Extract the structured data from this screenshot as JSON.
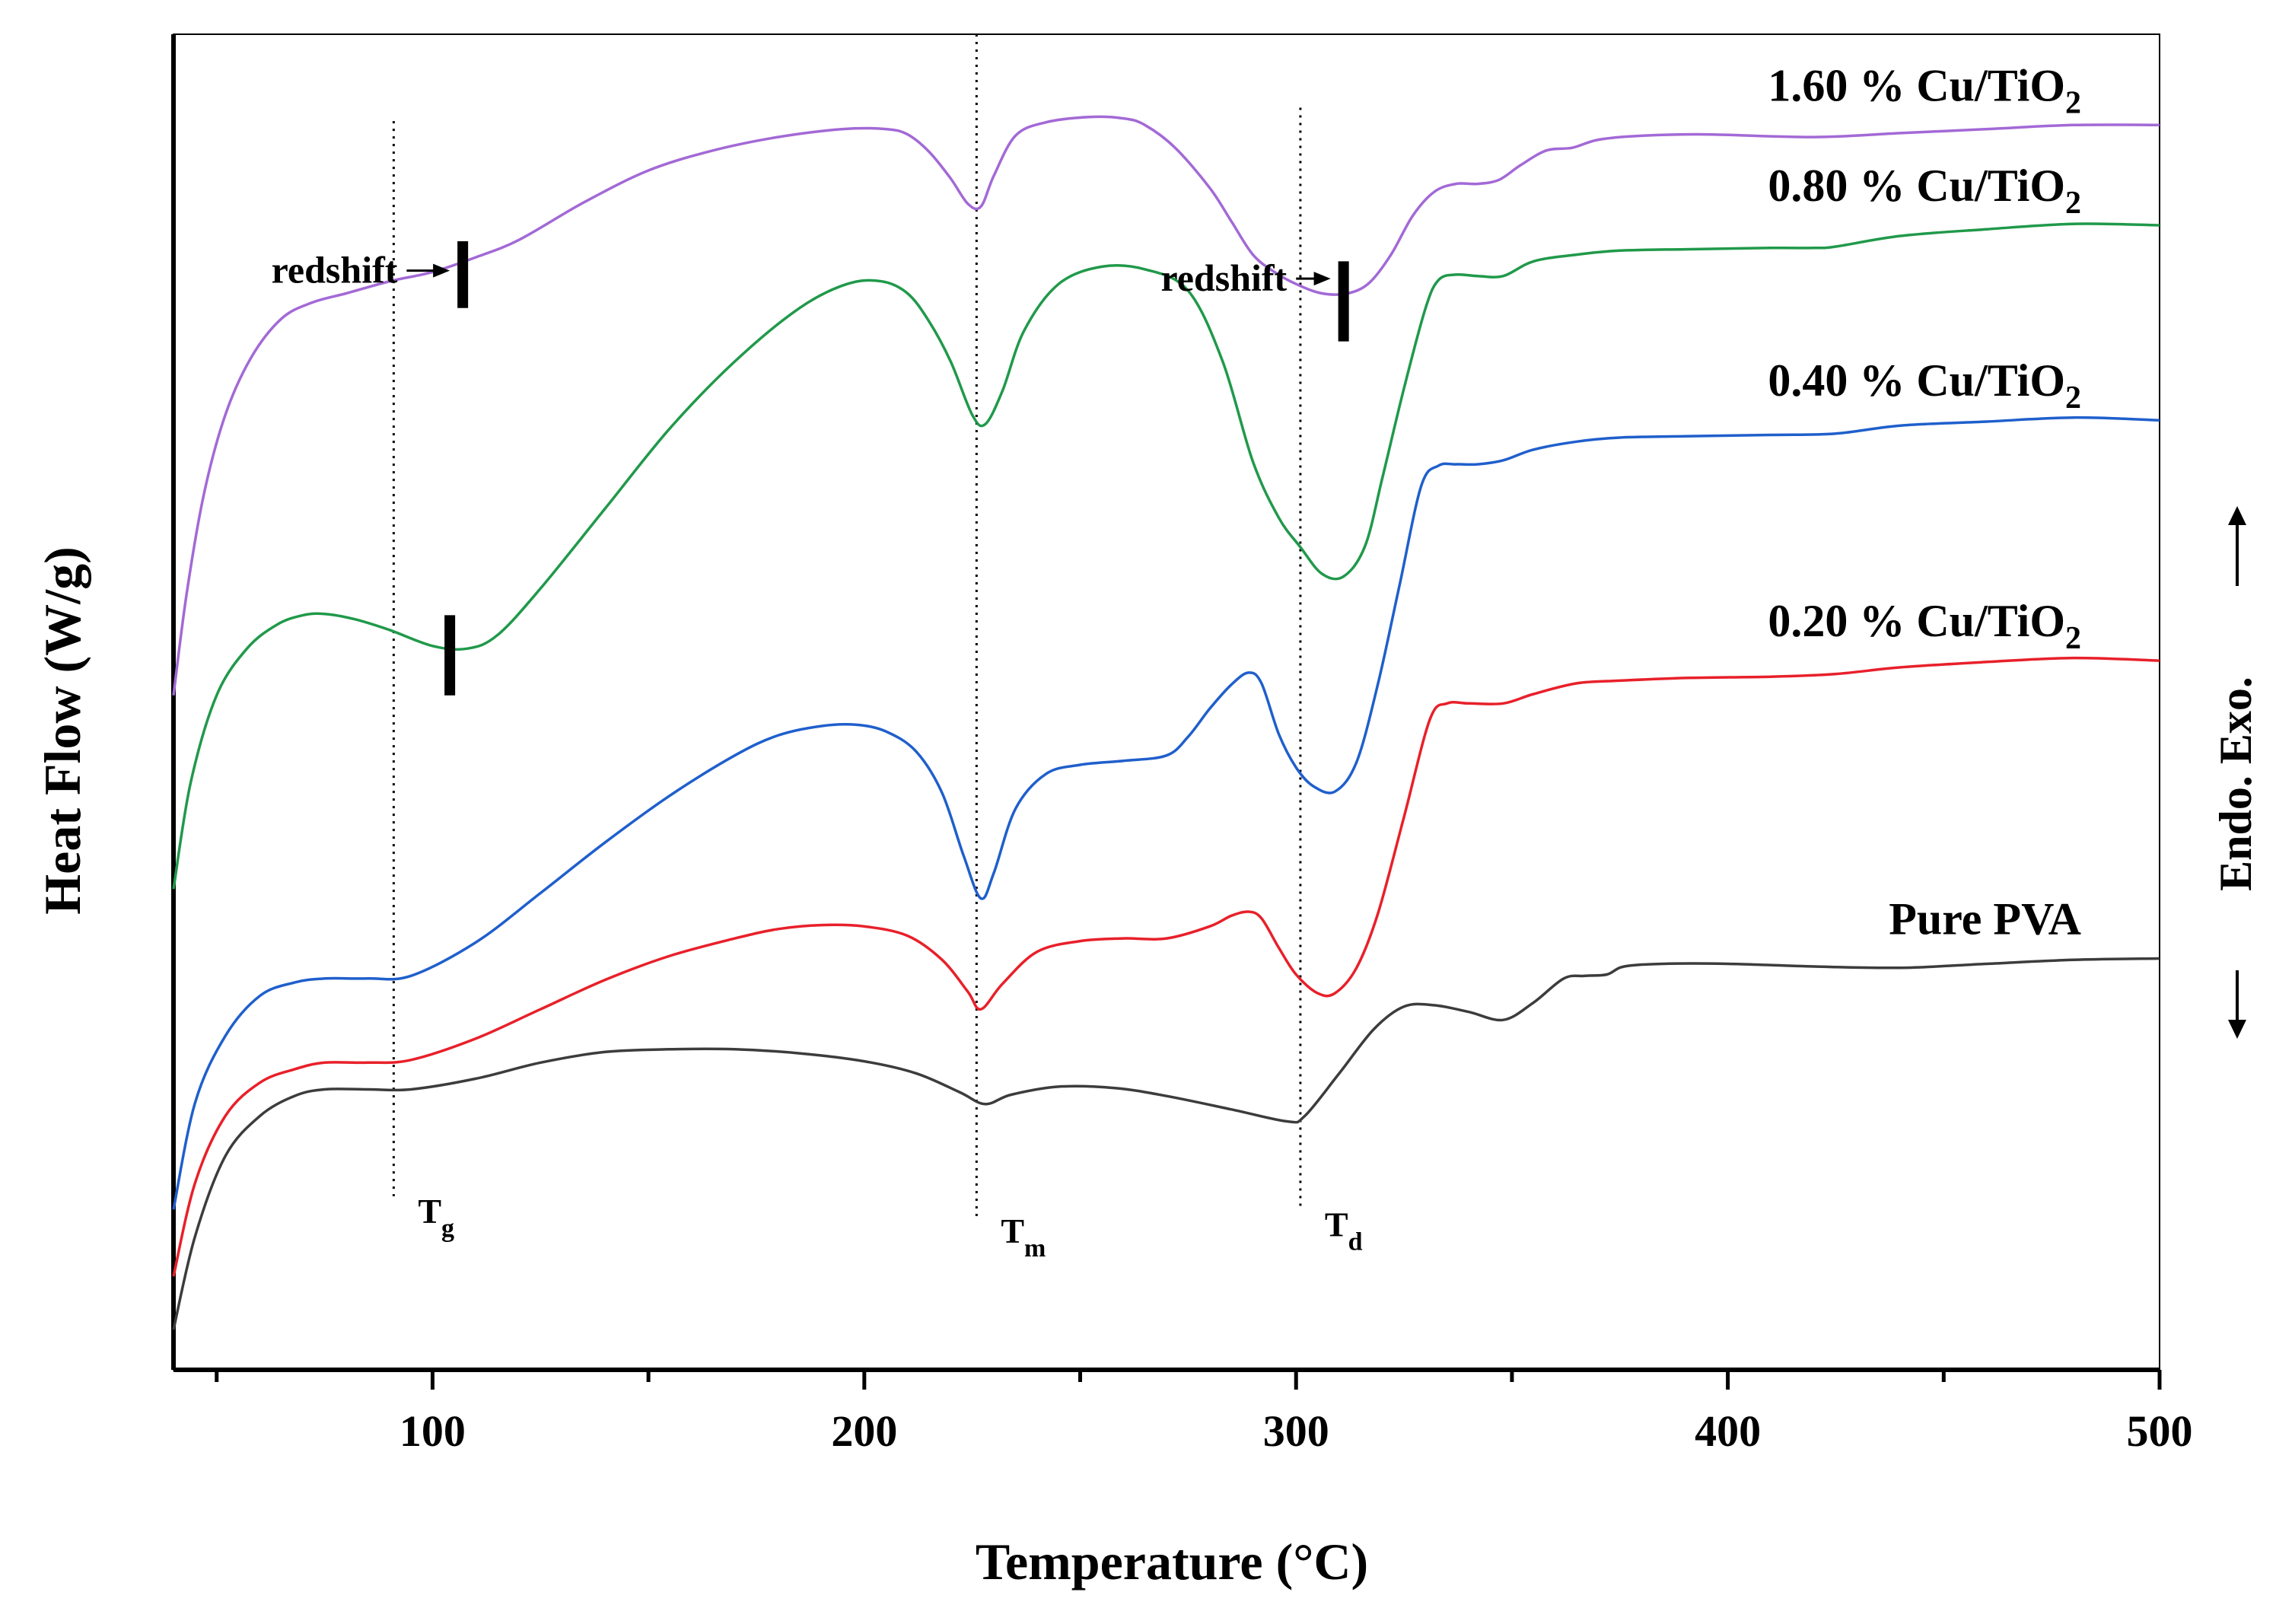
{
  "chart_data": {
    "type": "line",
    "title": "",
    "xlabel": "Temperature (°C)",
    "ylabel": "Heat Flow (W/g)",
    "xlim": [
      40,
      500
    ],
    "ylim": [
      0,
      100
    ],
    "xticks": [
      100,
      200,
      300,
      400,
      500
    ],
    "xtick_labels": [
      "100",
      "200",
      "300",
      "400",
      "500"
    ],
    "y_tick_labels_shown": false,
    "series": [
      {
        "name": "Pure PVA",
        "label": "Pure PVA",
        "color": "#3c3c3c",
        "x": [
          40,
          45,
          52,
          60,
          68,
          75,
          85,
          95,
          110,
          125,
          140,
          155,
          170,
          185,
          200,
          212,
          222,
          228,
          234,
          245,
          258,
          270,
          285,
          298,
          302,
          310,
          318,
          325,
          332,
          340,
          348,
          355,
          362,
          367,
          372,
          376,
          385,
          400,
          420,
          440,
          460,
          480,
          500
        ],
        "y": [
          3,
          10,
          16,
          19,
          20.5,
          21,
          21,
          21,
          21.8,
          23,
          23.8,
          24,
          24,
          23.7,
          23.1,
          22.2,
          20.8,
          19.9,
          20.6,
          21.2,
          21.1,
          20.5,
          19.5,
          18.6,
          19,
          22.2,
          25.5,
          27.2,
          27.3,
          26.8,
          26.2,
          27.5,
          29.3,
          29.5,
          29.6,
          30.2,
          30.4,
          30.4,
          30.2,
          30.1,
          30.4,
          30.7,
          30.8
        ]
      },
      {
        "name": "0.20 % Cu/TiO2",
        "label": "0.20 % Cu/TiO",
        "label_sub": "2",
        "color": "#e8202a",
        "x": [
          40,
          45,
          52,
          60,
          68,
          75,
          85,
          95,
          110,
          125,
          140,
          155,
          170,
          180,
          190,
          200,
          210,
          218,
          224,
          227,
          232,
          240,
          250,
          260,
          270,
          280,
          285,
          289,
          292,
          296,
          300,
          305,
          309,
          314,
          319,
          325,
          331,
          335,
          340,
          348,
          355,
          365,
          375,
          390,
          410,
          425,
          440,
          460,
          480,
          500
        ],
        "y": [
          7,
          14,
          19,
          21.5,
          22.5,
          23,
          23,
          23.2,
          24.8,
          27,
          29.2,
          31,
          32.3,
          33,
          33.3,
          33.2,
          32.5,
          30.7,
          28.3,
          27,
          28.9,
          31.3,
          32.1,
          32.3,
          32.3,
          33.2,
          34,
          34.3,
          33.8,
          31.6,
          29.6,
          28.2,
          28.2,
          30.1,
          34.2,
          41.4,
          48.7,
          49.9,
          49.9,
          49.9,
          50.6,
          51.4,
          51.6,
          51.8,
          51.9,
          52.1,
          52.6,
          53,
          53.3,
          53.1
        ]
      },
      {
        "name": "0.40 % Cu/TiO2",
        "label": "0.40 % Cu/TiO",
        "label_sub": "2",
        "color": "#1f5fcc",
        "x": [
          40,
          45,
          52,
          60,
          68,
          75,
          85,
          95,
          110,
          125,
          140,
          155,
          170,
          180,
          190,
          198,
          205,
          212,
          218,
          223,
          227,
          230,
          235,
          242,
          250,
          260,
          270,
          275,
          280,
          285,
          289,
          292,
          296,
          300,
          304,
          309,
          314,
          319,
          324,
          329,
          333,
          337,
          342,
          348,
          355,
          365,
          375,
          390,
          410,
          425,
          440,
          460,
          480,
          500
        ],
        "y": [
          12,
          20,
          25,
          28,
          29,
          29.3,
          29.3,
          29.5,
          32,
          35.7,
          39.5,
          43,
          46,
          47.5,
          48.2,
          48.3,
          47.8,
          46.3,
          43.2,
          38.5,
          35.3,
          37.2,
          42,
          44.6,
          45.3,
          45.6,
          46,
          47.4,
          49.5,
          51.3,
          52.2,
          51.4,
          47.6,
          45.1,
          43.7,
          43.3,
          45.5,
          51.4,
          58.8,
          66.2,
          67.7,
          67.8,
          67.8,
          68.1,
          68.9,
          69.5,
          69.8,
          69.9,
          70,
          70.1,
          70.7,
          71,
          71.3,
          71.1
        ]
      },
      {
        "name": "0.80 % Cu/TiO2",
        "label": "0.80 % Cu/TiO",
        "label_sub": "2",
        "color": "#20994a",
        "x": [
          40,
          44,
          50,
          57,
          64,
          70,
          75,
          82,
          90,
          100,
          108,
          115,
          125,
          140,
          155,
          170,
          185,
          196,
          204,
          210,
          215,
          220,
          225,
          228,
          232,
          237,
          245,
          255,
          265,
          275,
          283,
          290,
          296,
          301,
          306,
          311,
          316,
          320,
          325,
          330,
          333,
          337,
          342,
          348,
          355,
          365,
          375,
          390,
          410,
          420,
          425,
          440,
          460,
          480,
          500
        ],
        "y": [
          36,
          44,
          50.5,
          54,
          55.8,
          56.5,
          56.6,
          56.2,
          55.4,
          54.2,
          54,
          55,
          58.5,
          64.5,
          70.5,
          75.5,
          79.5,
          81.3,
          81.5,
          80.6,
          78.5,
          75.5,
          71.5,
          70.8,
          73.3,
          77.8,
          81.3,
          82.6,
          82.4,
          80.8,
          75.5,
          68,
          63.8,
          61.6,
          59.6,
          59.4,
          61.7,
          66.8,
          73.5,
          79.5,
          81.6,
          82,
          81.9,
          81.9,
          83,
          83.5,
          83.8,
          83.9,
          84,
          84,
          84.1,
          84.9,
          85.4,
          85.8,
          85.7
        ]
      },
      {
        "name": "1.60 % Cu/TiO2",
        "label": "1.60 % Cu/TiO",
        "label_sub": "2",
        "color": "#a369d6",
        "x": [
          40,
          43,
          47,
          52,
          58,
          65,
          72,
          80,
          90,
          100,
          110,
          120,
          135,
          150,
          165,
          180,
          195,
          205,
          210,
          215,
          220,
          224,
          227,
          230,
          235,
          242,
          252,
          260,
          265,
          272,
          280,
          285,
          290,
          295,
          300,
          306,
          312,
          317,
          322,
          327,
          332,
          337,
          342,
          347,
          352,
          358,
          364,
          370,
          380,
          395,
          420,
          440,
          460,
          480,
          500
        ],
        "y": [
          50.5,
          58,
          65.5,
          71.5,
          75.8,
          78.7,
          79.9,
          80.6,
          81.5,
          82.2,
          83.3,
          84.6,
          87.4,
          89.8,
          91.3,
          92.3,
          92.9,
          92.9,
          92.5,
          91.2,
          89.2,
          87.3,
          87.1,
          89.4,
          92.4,
          93.4,
          93.8,
          93.7,
          93.2,
          91.5,
          88.5,
          86,
          83.5,
          82.2,
          81.3,
          80.6,
          80.6,
          81.4,
          83.5,
          86.4,
          88.2,
          88.8,
          88.8,
          89.1,
          90.2,
          91.3,
          91.5,
          92.1,
          92.4,
          92.5,
          92.3,
          92.6,
          92.9,
          93.2,
          93.2
        ]
      }
    ],
    "vertical_lines": [
      {
        "x": 91,
        "label": "T",
        "sub": "g",
        "y_top": 93.5,
        "y_bottom": 13
      },
      {
        "x": 226,
        "label": "T",
        "sub": "m",
        "y_top": 100,
        "y_bottom": 11.5
      },
      {
        "x": 301,
        "label": "T",
        "sub": "d",
        "y_top": 94.5,
        "y_bottom": 12
      }
    ],
    "shift_markers": [
      {
        "x": 107,
        "y_top": 84.5,
        "y_bottom": 79.5
      },
      {
        "x": 311,
        "y_top": 83,
        "y_bottom": 77
      },
      {
        "x": 104,
        "y_top": 56.5,
        "y_bottom": 50.5
      }
    ],
    "annotations": [
      {
        "text": "redshift",
        "arrow_from_x": 94,
        "arrow_to_x": 104,
        "y": 82.3
      },
      {
        "text": "redshift",
        "arrow_from_x": 300,
        "arrow_to_x": 308,
        "y": 81.7
      }
    ],
    "side_label": "Endo.  Exo."
  }
}
